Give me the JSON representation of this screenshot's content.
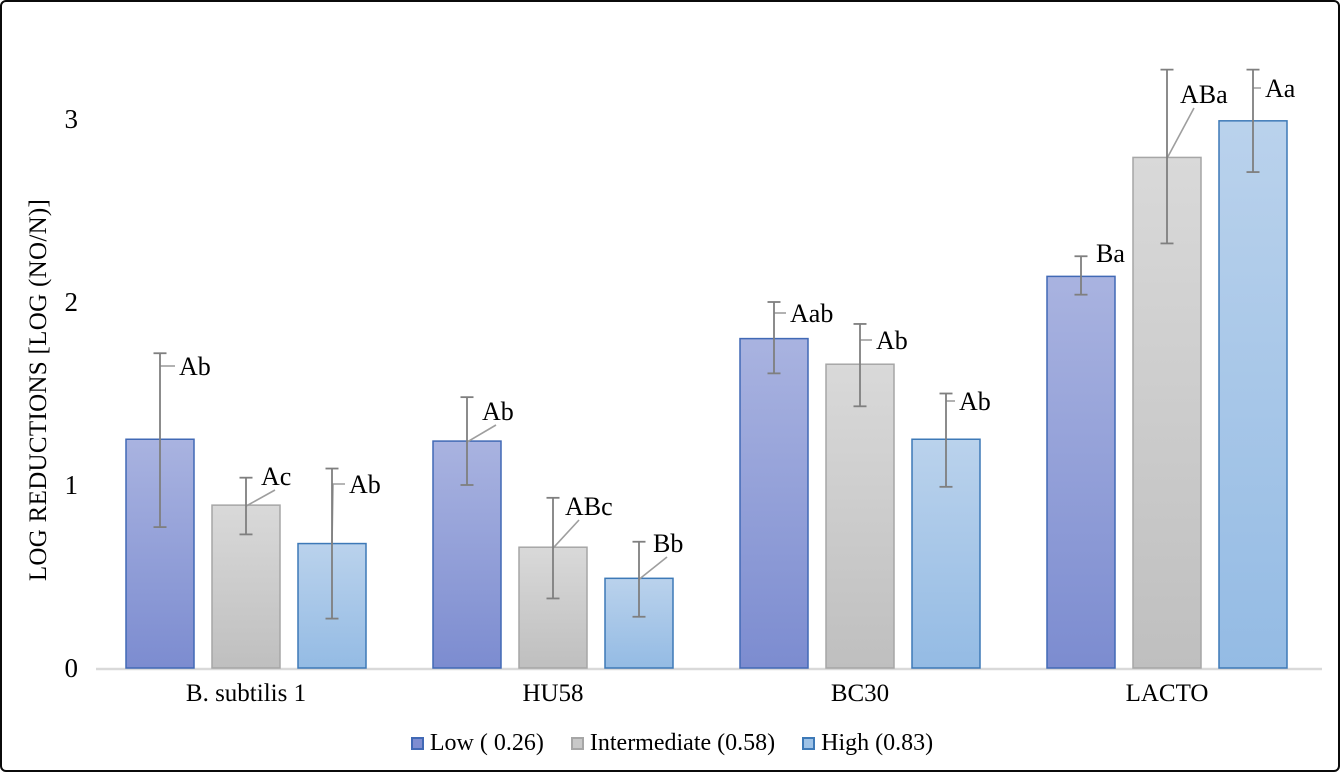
{
  "chart_data": {
    "type": "bar",
    "title": "",
    "ylabel": "LOG REDUCTIONS [LOG (NO/N)]",
    "xlabel": "",
    "categories": [
      "B. subtilis 1",
      "HU58",
      "BC30",
      "LACTO"
    ],
    "yticks": [
      0,
      1,
      2,
      3
    ],
    "ylim": [
      0,
      3.3
    ],
    "grid": false,
    "legend_position": "bottom",
    "series": [
      {
        "name": "Low ( 0.26)",
        "values": [
          1.25,
          1.24,
          1.8,
          2.14
        ],
        "error_plus": [
          0.47,
          0.24,
          0.2,
          0.11
        ],
        "error_minus": [
          0.48,
          0.24,
          0.19,
          0.1
        ],
        "point_labels": [
          "Ab",
          "Ab",
          "Aab",
          "Ba"
        ],
        "fill_top": "#A9B3E0",
        "fill_bottom": "#7C8CD0",
        "border": "#4169B5",
        "legend_fill": "#7E8DD1"
      },
      {
        "name": "Intermediate (0.58)",
        "values": [
          0.89,
          0.66,
          1.66,
          2.79
        ],
        "error_plus": [
          0.15,
          0.27,
          0.22,
          0.48
        ],
        "error_minus": [
          0.16,
          0.28,
          0.23,
          0.47
        ],
        "point_labels": [
          "Ac",
          "ABc",
          "Ab",
          "ABa"
        ],
        "fill_top": "#D9D9D9",
        "fill_bottom": "#BFBFBF",
        "border": "#A6A6A6",
        "legend_fill": "#C8C8C8"
      },
      {
        "name": "High (0.83)",
        "values": [
          0.68,
          0.49,
          1.25,
          2.99
        ],
        "error_plus": [
          0.41,
          0.2,
          0.25,
          0.28
        ],
        "error_minus": [
          0.41,
          0.21,
          0.26,
          0.28
        ],
        "point_labels": [
          "Ab",
          "Bb",
          "Ab",
          "Aa"
        ],
        "fill_top": "#BAD2EC",
        "fill_bottom": "#94BBE4",
        "border": "#3D79B7",
        "legend_fill": "#9DC2E7"
      }
    ],
    "axis_line_color": "#D9D9D9",
    "error_bar_color": "#7F7F7F",
    "leader_line_color": "#9E9E9E",
    "text_color": "#000000"
  }
}
